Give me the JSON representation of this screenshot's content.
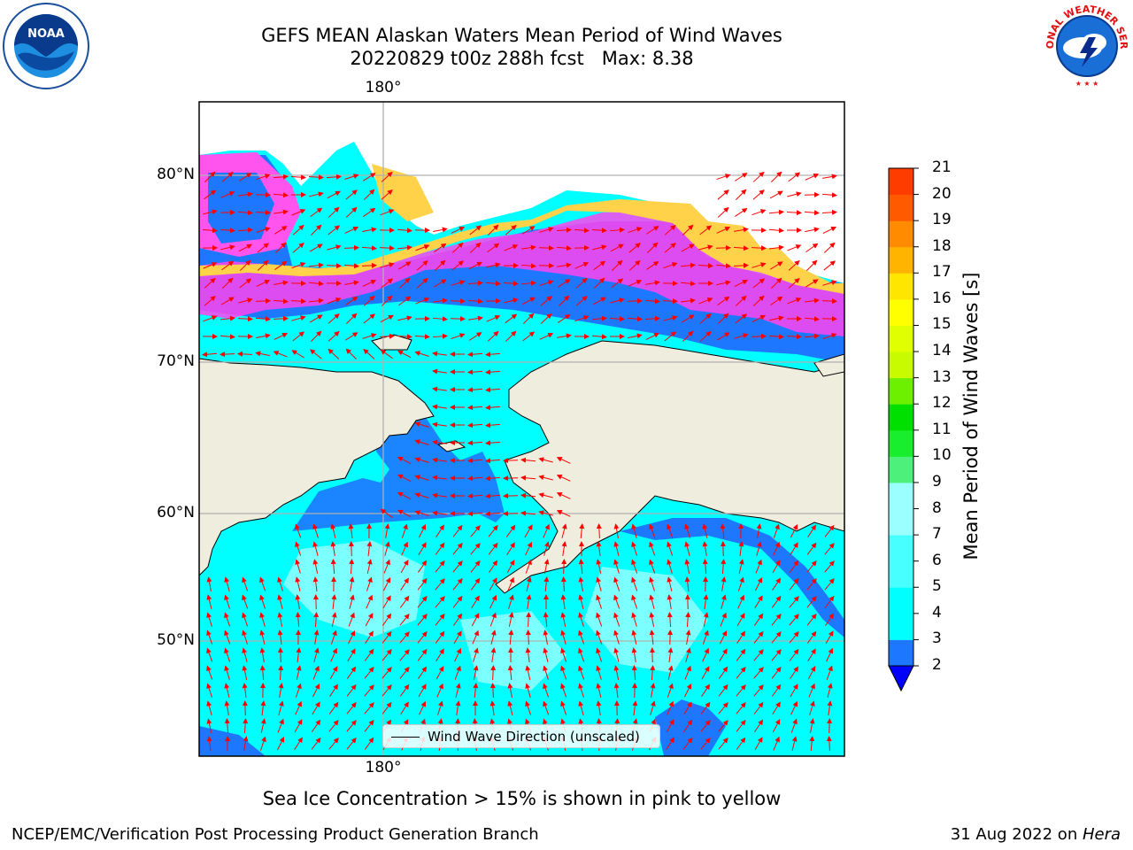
{
  "header": {
    "title_line1": "GEFS MEAN Alaskan Waters Mean Period of Wind Waves",
    "title_line2": "20220829 t00z 288h fcst   Max: 8.38"
  },
  "logos": {
    "left": "noaa-logo",
    "left_text": "NOAA",
    "right": "national-weather-service-logo",
    "right_text": "NATIONAL WEATHER SERVICE"
  },
  "map": {
    "top_lon_label": "180°",
    "bottom_lon_label": "180°",
    "lat_labels": [
      "80°N",
      "70°N",
      "60°N",
      "50°N"
    ],
    "land_color": "#efedde",
    "arrow_color": "#ff0000",
    "grid_color": "#b0b0b0",
    "legend_label": "Wind Wave Direction (unscaled)"
  },
  "colorbar": {
    "title": "Mean Period of Wind Waves [s]",
    "ticks": [
      "21",
      "20",
      "19",
      "18",
      "17",
      "16",
      "15",
      "14",
      "13",
      "12",
      "11",
      "10",
      "9",
      "8",
      "7",
      "6",
      "5",
      "4",
      "3",
      "2"
    ],
    "min": 2,
    "max": 21,
    "colors": [
      "#0000ff",
      "#1e78ff",
      "#00ffff",
      "#00ffff",
      "#47ffff",
      "#47ffff",
      "#9bffff",
      "#9bffff",
      "#4cf07a",
      "#18ee2d",
      "#00e000",
      "#6cf000",
      "#c8fa00",
      "#e0ff00",
      "#ffff00",
      "#ffe600",
      "#ffb400",
      "#ff8c00",
      "#ff5a00",
      "#ff3c00",
      "#ff0000"
    ]
  },
  "footer": {
    "ice_note": "Sea Ice Concentration > 15% is shown in pink to yellow",
    "left": "NCEP/EMC/Verification Post Processing Product Generation Branch",
    "right_date": "31 Aug 2022 on ",
    "right_machine": "Hera"
  }
}
